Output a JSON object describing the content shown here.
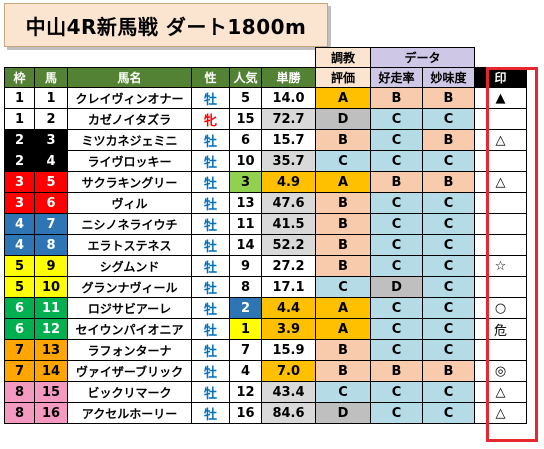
{
  "title": "中山4R新馬戦 ダート1800m",
  "header": {
    "top_training": "調教",
    "top_data": "データ",
    "waku": "枠",
    "uma": "馬",
    "name": "馬名",
    "sex": "性",
    "pop": "人気",
    "odds": "単勝",
    "training": "評価",
    "runrate": "好走率",
    "taste": "妙味度",
    "mark": "印"
  },
  "colors": {
    "header_green": "#548235",
    "A": "#ffc000",
    "B": "#f8cbad",
    "C": "#b4dbe6",
    "D": "#bfbfbf",
    "grade_A": "#ffc000",
    "grade_B": "#f8cbad",
    "grade_C": "#a9d3dd",
    "grade_D": "#bfbfbf",
    "mark_border": "#e8262d"
  },
  "rows": [
    {
      "waku": "1",
      "uma": "1",
      "name": "クレイヴィンオナー",
      "sex": "牡",
      "pop": "5",
      "odds": "14.0",
      "training": "A",
      "runrate": "B",
      "taste": "B",
      "mark": "▲",
      "wbg": "#ffffff",
      "wfg": "#000000",
      "popbg": "#ffffff",
      "oddsbg": "#ffffff"
    },
    {
      "waku": "1",
      "uma": "2",
      "name": "カゼノイタズラ",
      "sex": "牝",
      "pop": "15",
      "odds": "72.7",
      "training": "D",
      "runrate": "C",
      "taste": "C",
      "mark": "",
      "wbg": "#ffffff",
      "wfg": "#000000",
      "popbg": "#ffffff",
      "oddsbg": "#d9d9d9"
    },
    {
      "waku": "2",
      "uma": "3",
      "name": "ミツカネジェミニ",
      "sex": "牡",
      "pop": "6",
      "odds": "15.7",
      "training": "B",
      "runrate": "C",
      "taste": "B",
      "mark": "△",
      "wbg": "#000000",
      "wfg": "#ffffff",
      "popbg": "#ffffff",
      "oddsbg": "#ffffff"
    },
    {
      "waku": "2",
      "uma": "4",
      "name": "ライヴロッキー",
      "sex": "牡",
      "pop": "10",
      "odds": "35.7",
      "training": "C",
      "runrate": "C",
      "taste": "C",
      "mark": "",
      "wbg": "#000000",
      "wfg": "#ffffff",
      "popbg": "#ffffff",
      "oddsbg": "#d9d9d9"
    },
    {
      "waku": "3",
      "uma": "5",
      "name": "サクラキングリー",
      "sex": "牡",
      "pop": "3",
      "odds": "4.9",
      "training": "A",
      "runrate": "B",
      "taste": "B",
      "mark": "△",
      "wbg": "#ff0000",
      "wfg": "#ffffff",
      "popbg": "#92d050",
      "oddsbg": "#ffc000"
    },
    {
      "waku": "3",
      "uma": "6",
      "name": "ヴィル",
      "sex": "牡",
      "pop": "13",
      "odds": "47.6",
      "training": "B",
      "runrate": "C",
      "taste": "C",
      "mark": "",
      "wbg": "#ff0000",
      "wfg": "#ffffff",
      "popbg": "#ffffff",
      "oddsbg": "#d9d9d9"
    },
    {
      "waku": "4",
      "uma": "7",
      "name": "ニシノネライウチ",
      "sex": "牡",
      "pop": "11",
      "odds": "41.5",
      "training": "B",
      "runrate": "C",
      "taste": "C",
      "mark": "",
      "wbg": "#2e75b6",
      "wfg": "#ffffff",
      "popbg": "#ffffff",
      "oddsbg": "#d9d9d9"
    },
    {
      "waku": "4",
      "uma": "8",
      "name": "エラトステネス",
      "sex": "牡",
      "pop": "14",
      "odds": "52.2",
      "training": "B",
      "runrate": "C",
      "taste": "C",
      "mark": "",
      "wbg": "#2e75b6",
      "wfg": "#ffffff",
      "popbg": "#ffffff",
      "oddsbg": "#d9d9d9"
    },
    {
      "waku": "5",
      "uma": "9",
      "name": "シグムンド",
      "sex": "牡",
      "pop": "9",
      "odds": "27.2",
      "training": "B",
      "runrate": "C",
      "taste": "C",
      "mark": "☆",
      "wbg": "#ffff00",
      "wfg": "#000000",
      "popbg": "#ffffff",
      "oddsbg": "#ffffff"
    },
    {
      "waku": "5",
      "uma": "10",
      "name": "グランナヴィール",
      "sex": "牡",
      "pop": "8",
      "odds": "17.1",
      "training": "C",
      "runrate": "D",
      "taste": "C",
      "mark": "",
      "wbg": "#ffff00",
      "wfg": "#000000",
      "popbg": "#ffffff",
      "oddsbg": "#ffffff"
    },
    {
      "waku": "6",
      "uma": "11",
      "name": "ロジサビアーレ",
      "sex": "牡",
      "pop": "2",
      "odds": "4.4",
      "training": "A",
      "runrate": "C",
      "taste": "C",
      "mark": "○",
      "wbg": "#00b050",
      "wfg": "#ffffff",
      "popbg": "#2e75b6",
      "oddsbg": "#ffc000"
    },
    {
      "waku": "6",
      "uma": "12",
      "name": "セイウンパイオニア",
      "sex": "牡",
      "pop": "1",
      "odds": "3.9",
      "training": "A",
      "runrate": "C",
      "taste": "C",
      "mark": "危",
      "wbg": "#00b050",
      "wfg": "#ffffff",
      "popbg": "#ffff00",
      "oddsbg": "#ffc000"
    },
    {
      "waku": "7",
      "uma": "13",
      "name": "ラフォンターナ",
      "sex": "牡",
      "pop": "7",
      "odds": "15.9",
      "training": "B",
      "runrate": "C",
      "taste": "C",
      "mark": "",
      "wbg": "#ffa500",
      "wfg": "#000000",
      "popbg": "#ffffff",
      "oddsbg": "#ffffff"
    },
    {
      "waku": "7",
      "uma": "14",
      "name": "ヴァイザーブリック",
      "sex": "牡",
      "pop": "4",
      "odds": "7.0",
      "training": "B",
      "runrate": "B",
      "taste": "B",
      "mark": "◎",
      "wbg": "#ffa500",
      "wfg": "#000000",
      "popbg": "#ffffff",
      "oddsbg": "#ffc000"
    },
    {
      "waku": "8",
      "uma": "15",
      "name": "ビックリマーク",
      "sex": "牡",
      "pop": "12",
      "odds": "43.4",
      "training": "C",
      "runrate": "C",
      "taste": "C",
      "mark": "△",
      "wbg": "#f49ac1",
      "wfg": "#000000",
      "popbg": "#ffffff",
      "oddsbg": "#d9d9d9"
    },
    {
      "waku": "8",
      "uma": "16",
      "name": "アクセルホーリー",
      "sex": "牡",
      "pop": "16",
      "odds": "84.6",
      "training": "D",
      "runrate": "C",
      "taste": "C",
      "mark": "△",
      "wbg": "#f49ac1",
      "wfg": "#000000",
      "popbg": "#ffffff",
      "oddsbg": "#d9d9d9"
    }
  ]
}
